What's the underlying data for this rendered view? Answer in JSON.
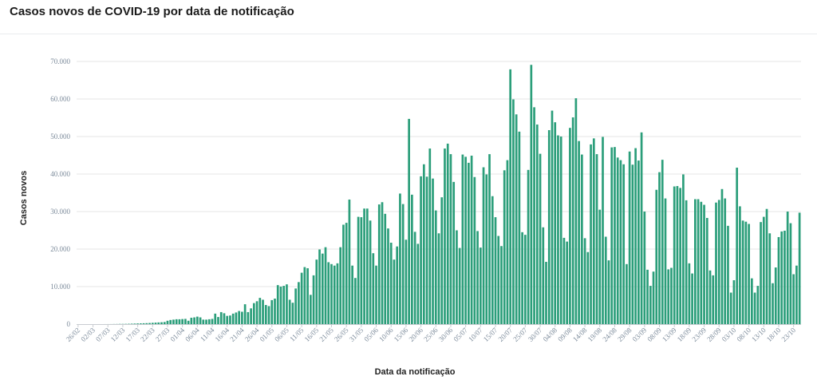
{
  "header": {
    "title": "Casos novos de COVID-19 por data de notificação"
  },
  "chart_data": {
    "type": "bar",
    "xlabel": "Data da notificação",
    "ylabel": "Casos novos",
    "ylim": [
      0,
      70000
    ],
    "y_ticks": [
      0,
      10000,
      20000,
      30000,
      40000,
      50000,
      60000,
      70000
    ],
    "y_tick_labels": [
      "0",
      "10.000",
      "20.000",
      "30.000",
      "40.000",
      "50.000",
      "60.000",
      "70.000"
    ],
    "x_tick_labels": [
      "26/02",
      "02/03",
      "07/03",
      "12/03",
      "17/03",
      "22/03",
      "27/03",
      "01/04",
      "06/04",
      "11/04",
      "16/04",
      "21/04",
      "26/04",
      "01/05",
      "06/05",
      "11/05",
      "16/05",
      "21/05",
      "26/05",
      "31/05",
      "05/06",
      "10/06",
      "15/06",
      "20/06",
      "25/06",
      "30/06",
      "05/07",
      "10/07",
      "15/07",
      "20/07",
      "25/07",
      "30/07",
      "04/08",
      "09/08",
      "14/08",
      "19/08",
      "24/08",
      "29/08",
      "03/09",
      "08/09",
      "13/09",
      "18/09",
      "23/09",
      "28/09",
      "03/10",
      "08/10",
      "13/10",
      "18/10",
      "23/10"
    ],
    "x_tick_every": 5,
    "grid": true,
    "bar_color": "#2b9e7a",
    "values": [
      1,
      0,
      0,
      0,
      0,
      0,
      0,
      2,
      0,
      5,
      8,
      13,
      25,
      31,
      55,
      60,
      70,
      90,
      120,
      150,
      180,
      200,
      230,
      260,
      300,
      350,
      400,
      450,
      500,
      560,
      900,
      1100,
      1200,
      1300,
      1300,
      1350,
      1400,
      900,
      1700,
      1800,
      2000,
      1800,
      1200,
      1200,
      1300,
      1400,
      2800,
      1900,
      3200,
      2900,
      2200,
      2300,
      2800,
      3100,
      3500,
      3300,
      5300,
      3200,
      4200,
      5600,
      6100,
      7000,
      6500,
      5100,
      4800,
      6400,
      6800,
      10400,
      10000,
      10200,
      10600,
      6500,
      5700,
      9500,
      11200,
      13700,
      15200,
      14900,
      7800,
      13000,
      17200,
      19900,
      18800,
      20500,
      16500,
      16000,
      15600,
      16200,
      20500,
      26500,
      27000,
      33200,
      15600,
      12300,
      28600,
      28500,
      30800,
      30800,
      27600,
      18900,
      15600,
      31900,
      32500,
      29400,
      25500,
      21700,
      17200,
      20700,
      34800,
      32000,
      22500,
      54700,
      34500,
      24600,
      21400,
      39400,
      42600,
      39300,
      46800,
      38800,
      30300,
      24200,
      33800,
      46800,
      48100,
      45300,
      37900,
      25000,
      20300,
      45200,
      44600,
      43000,
      44900,
      39200,
      24800,
      20400,
      41800,
      39900,
      45300,
      34100,
      28500,
      23500,
      20800,
      41000,
      43700,
      67900,
      59900,
      55900,
      51300,
      24500,
      23800,
      41100,
      69100,
      57800,
      53200,
      45400,
      25800,
      16600,
      51700,
      56900,
      53800,
      50300,
      50000,
      23000,
      22000,
      52300,
      55100,
      60200,
      48800,
      45200,
      22900,
      19200,
      47900,
      49500,
      45300,
      30500,
      49900,
      23300,
      17000,
      47100,
      47200,
      44400,
      43700,
      42600,
      16000,
      46000,
      42500,
      46900,
      43600,
      51100,
      30000,
      14500,
      10200,
      14000,
      35800,
      40500,
      43800,
      33500,
      14600,
      15000,
      36700,
      36800,
      36300,
      39900,
      33000,
      16200,
      13500,
      33300,
      33300,
      32600,
      31800,
      28300,
      14300,
      13000,
      32400,
      33100,
      36000,
      33500,
      26200,
      8400,
      11700,
      41700,
      31400,
      27600,
      27300,
      26700,
      12200,
      8400,
      10200,
      27200,
      28600,
      30700,
      24200,
      10900,
      15100,
      23200,
      24700,
      24900,
      30000,
      26900,
      13300,
      15600,
      29700
    ]
  }
}
